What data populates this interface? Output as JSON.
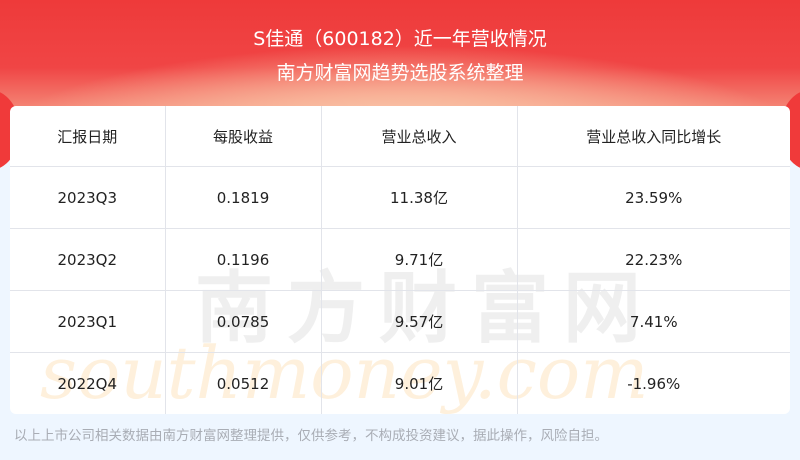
{
  "header": {
    "title": "S佳通（600182）近一年营收情况",
    "subtitle": "南方财富网趋势选股系统整理"
  },
  "table": {
    "columns": [
      "汇报日期",
      "每股收益",
      "营业总收入",
      "营业总收入同比增长"
    ],
    "rows": [
      [
        "2023Q3",
        "0.1819",
        "11.38亿",
        "23.59%"
      ],
      [
        "2023Q2",
        "0.1196",
        "9.71亿",
        "22.23%"
      ],
      [
        "2023Q1",
        "0.0785",
        "9.57亿",
        "7.41%"
      ],
      [
        "2022Q4",
        "0.0512",
        "9.01亿",
        "-1.96%"
      ]
    ]
  },
  "watermark": {
    "cn": "南方财富网",
    "en": "southmoney.com"
  },
  "footer": "以上上市公司相关数据由南方财富网整理提供，仅供参考，不构成投资建议，据此操作，风险自担。",
  "colors": {
    "banner": "#ee3a3a",
    "background": "#eef6ff"
  }
}
